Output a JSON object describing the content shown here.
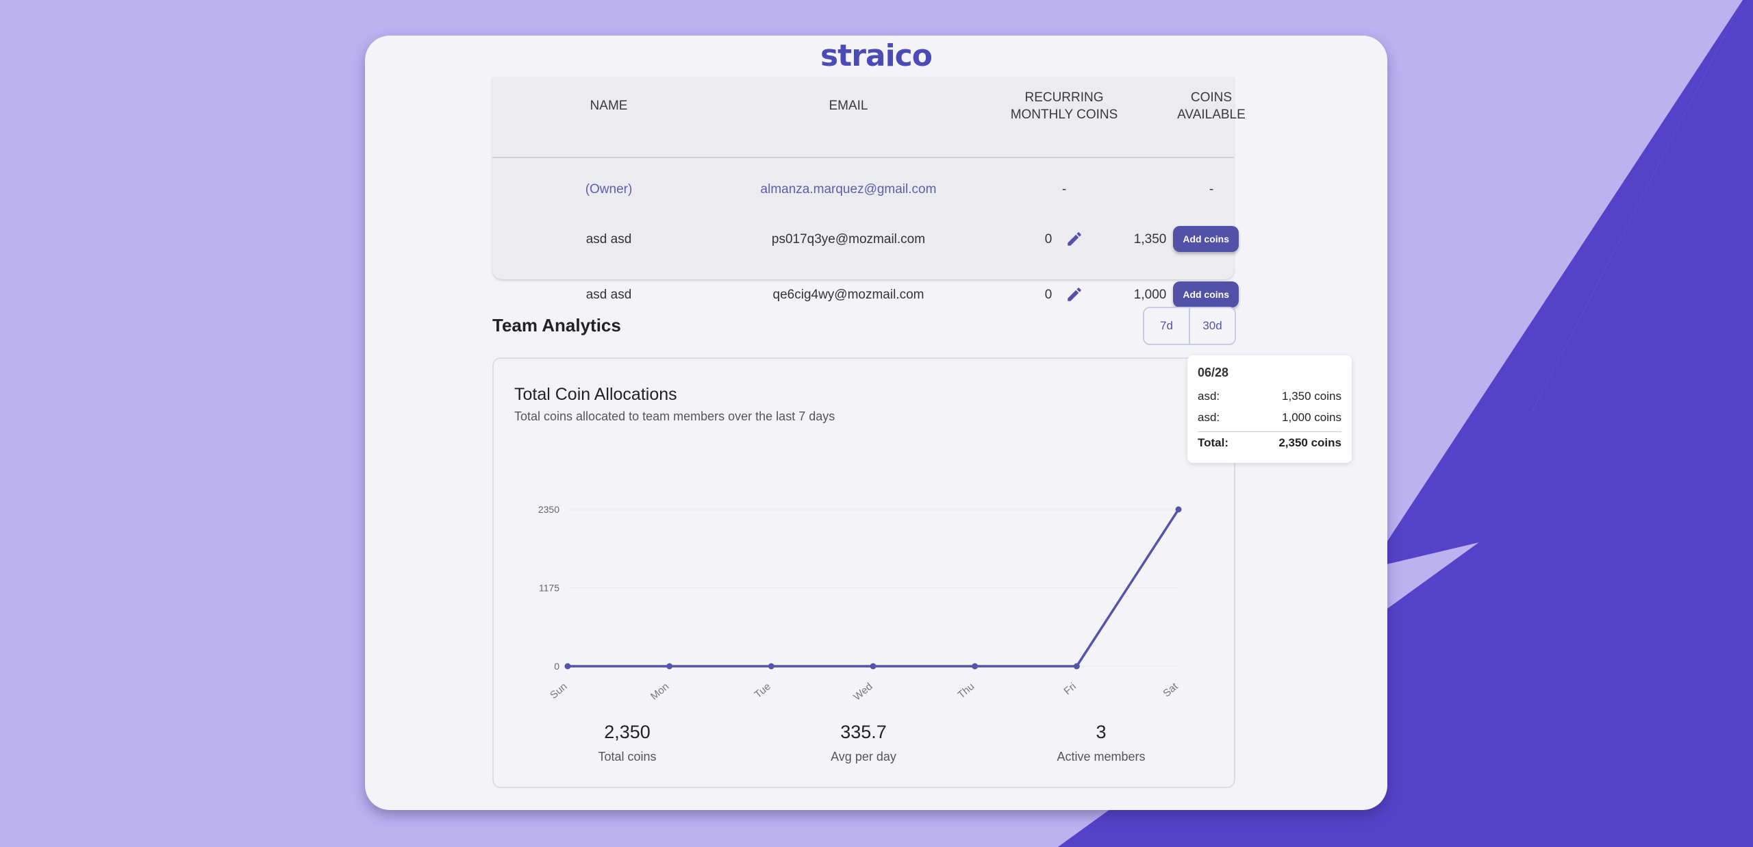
{
  "brand": {
    "logo_text": "straico"
  },
  "table": {
    "headers": {
      "name": "NAME",
      "email": "EMAIL",
      "recurring": "RECURRING MONTHLY COINS",
      "coins": "COINS AVAILABLE"
    },
    "rows": [
      {
        "name": "(Owner)",
        "email": "almanza.marquez@gmail.com",
        "recurring": "-",
        "coins": "-"
      },
      {
        "name": "asd asd",
        "email": "ps017q3ye@mozmail.com",
        "recurring": "0",
        "coins": "1,350",
        "action": "Add coins"
      },
      {
        "name": "asd asd",
        "email": "qe6cig4wy@mozmail.com",
        "recurring": "0",
        "coins": "1,000",
        "action": "Add coins"
      }
    ]
  },
  "analytics": {
    "title": "Team Analytics",
    "ranges": [
      "7d",
      "30d"
    ]
  },
  "chart_card": {
    "title": "Total Coin Allocations",
    "subtitle": "Total coins allocated to team members over the last 7 days"
  },
  "chart_data": {
    "type": "line",
    "title": "Total Coin Allocations",
    "categories": [
      "Sun",
      "Mon",
      "Tue",
      "Wed",
      "Thu",
      "Fri",
      "Sat"
    ],
    "values": [
      0,
      0,
      0,
      0,
      0,
      0,
      2350
    ],
    "yticks": [
      "0",
      "1175",
      "2350"
    ],
    "ylim": [
      0,
      2350
    ],
    "grid": true,
    "color": "#5454a8"
  },
  "stats": [
    {
      "value": "2,350",
      "label": "Total coins"
    },
    {
      "value": "335.7",
      "label": "Avg per day"
    },
    {
      "value": "3",
      "label": "Active members"
    }
  ],
  "tooltip": {
    "date": "06/28",
    "rows": [
      {
        "label": "asd:",
        "value": "1,350 coins"
      },
      {
        "label": "asd:",
        "value": "1,000 coins"
      }
    ],
    "total_label": "Total:",
    "total_value": "2,350 coins"
  },
  "colors": {
    "accent": "#5151a8",
    "background": "#bcb2f0",
    "shape": "#5542c8"
  }
}
